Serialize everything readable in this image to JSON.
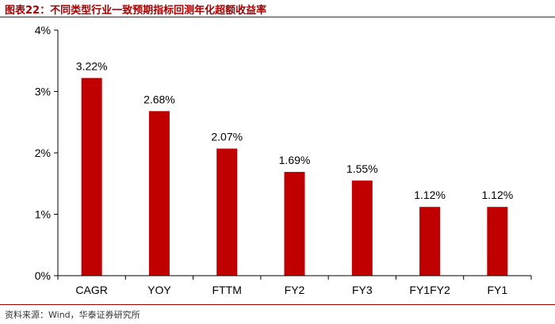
{
  "header": {
    "label": "图表22：",
    "text": "不同类型行业一致预期指标回测年化超额收益率"
  },
  "footer": {
    "source": "资料来源：Wind，华泰证券研究所"
  },
  "colors": {
    "bar": "#c00000",
    "accent": "#a50000",
    "axis": "#000000"
  },
  "chart_data": {
    "type": "bar",
    "categories": [
      "CAGR",
      "YOY",
      "FTTM",
      "FY2",
      "FY3",
      "FY1FY2",
      "FY1"
    ],
    "values": [
      3.22,
      2.68,
      2.07,
      1.69,
      1.55,
      1.12,
      1.12
    ],
    "data_labels": [
      "3.22%",
      "2.68%",
      "2.07%",
      "1.69%",
      "1.55%",
      "1.12%",
      "1.12%"
    ],
    "ylim": [
      0,
      4
    ],
    "yticks": [
      0,
      1,
      2,
      3,
      4
    ],
    "ytick_labels": [
      "0%",
      "1%",
      "2%",
      "3%",
      "4%"
    ],
    "grid": false,
    "legend": "none"
  }
}
